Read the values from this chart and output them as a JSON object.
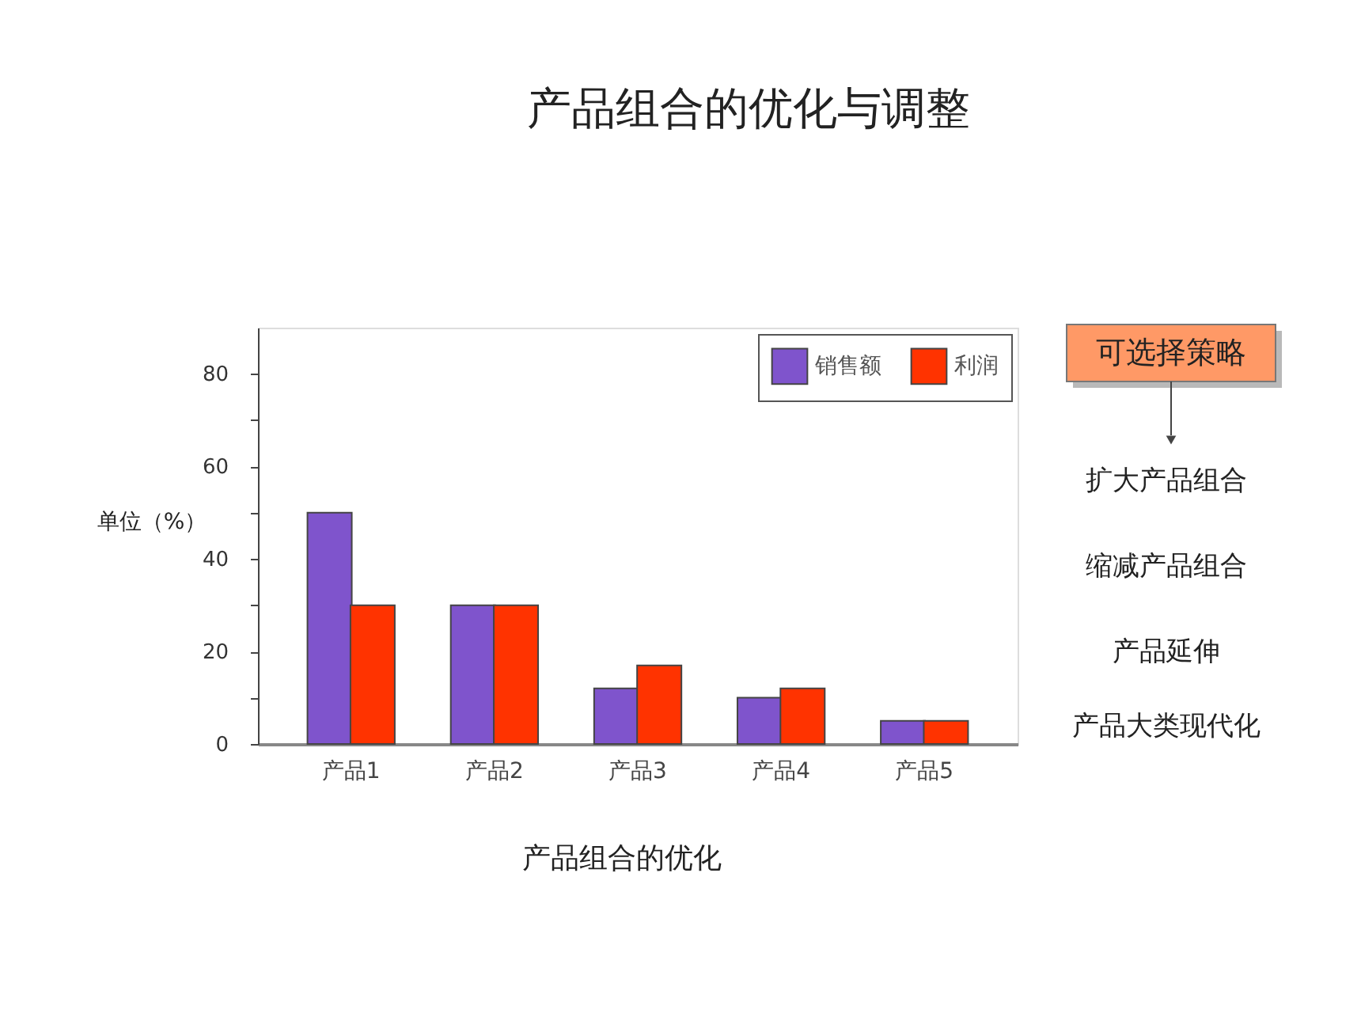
{
  "chart_data": {
    "type": "bar",
    "title": "产品组合的优化与调整",
    "xlabel": "产品组合的优化",
    "ylabel": "单位（%）",
    "categories": [
      "产品1",
      "产品2",
      "产品3",
      "产品4",
      "产品5"
    ],
    "series": [
      {
        "name": "销售额",
        "color": "#7f54cc",
        "values": [
          50,
          30,
          12,
          10,
          5
        ]
      },
      {
        "name": "利润",
        "color": "#ff3300",
        "values": [
          30,
          30,
          17,
          12,
          5
        ]
      }
    ],
    "ylim": [
      0,
      90
    ],
    "yticks": [
      0,
      {
        "value": 10,
        "label": null
      },
      20,
      {
        "value": 30,
        "label": null
      },
      40,
      {
        "value": 50,
        "label": null
      },
      60,
      {
        "value": 70,
        "label": null
      },
      80
    ],
    "grid": false,
    "legend": "top right",
    "annotations": [
      "可选择策略",
      "扩大产品组合",
      "缩减产品组合",
      "产品延伸",
      "产品大类现代化"
    ]
  }
}
